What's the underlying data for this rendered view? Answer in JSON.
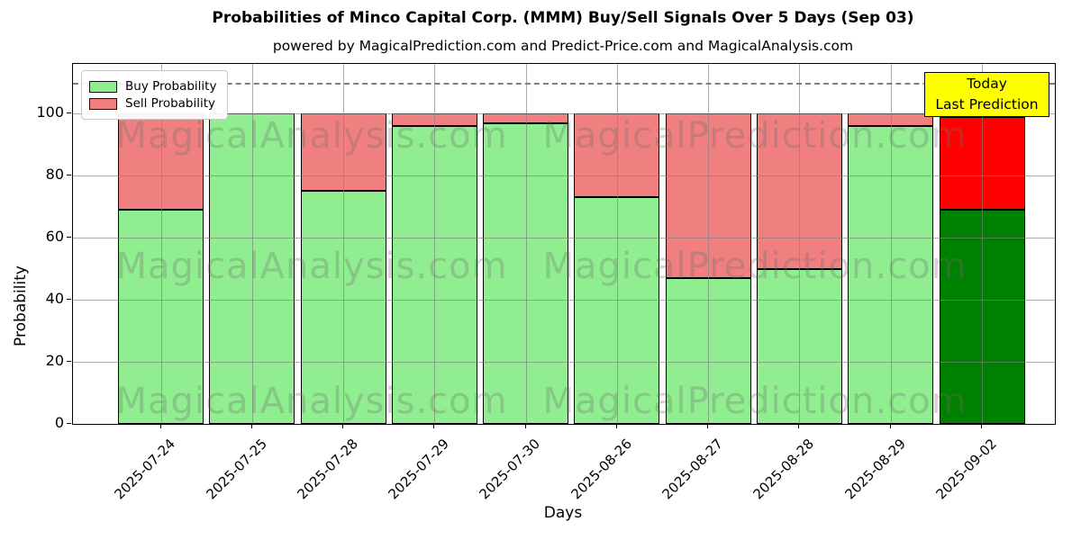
{
  "title": "Probabilities of Minco Capital Corp. (MMM) Buy/Sell Signals Over 5 Days (Sep 03)",
  "subtitle": "powered by MagicalPrediction.com and Predict-Price.com and MagicalAnalysis.com",
  "chart_data": {
    "type": "bar",
    "stacked": true,
    "categories": [
      "2025-07-24",
      "2025-07-25",
      "2025-07-28",
      "2025-07-29",
      "2025-07-30",
      "2025-08-26",
      "2025-08-27",
      "2025-08-28",
      "2025-08-29",
      "2025-09-02"
    ],
    "series": [
      {
        "name": "Buy Probability",
        "color": "#90EE90",
        "values": [
          69,
          100,
          75,
          96,
          97,
          73,
          47,
          50,
          96,
          69
        ]
      },
      {
        "name": "Sell Probability",
        "color": "#F08080",
        "values": [
          31,
          0,
          25,
          4,
          3,
          27,
          53,
          50,
          4,
          30
        ]
      }
    ],
    "last_bar_colors": {
      "buy": "#008000",
      "sell": "#FF0000"
    },
    "xlabel": "Days",
    "ylabel": "Probability",
    "ylim": [
      0,
      116
    ],
    "yticks": [
      0,
      20,
      40,
      60,
      80,
      100
    ],
    "grid": true,
    "legend_position": "upper-left",
    "dashed_line_y": 110,
    "dashed_line_color": "#7f7f7f",
    "annotation": {
      "lines": [
        "Today",
        "Last Prediction"
      ],
      "bg_color": "#FFFF00",
      "border_color": "#000000"
    }
  },
  "watermarks": [
    "MagicalAnalysis.com",
    "MagicalPrediction.com"
  ]
}
